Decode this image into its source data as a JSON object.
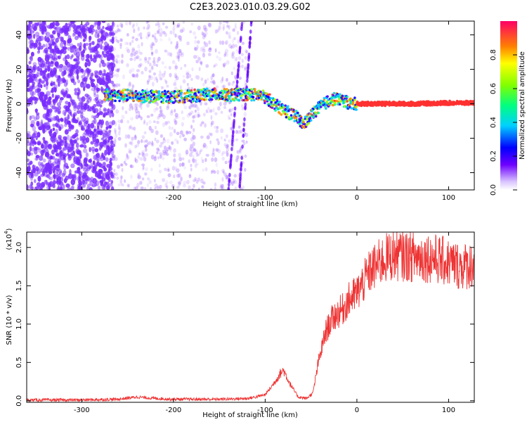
{
  "figure": {
    "title": "C2E3.2023.010.03.29.G02"
  },
  "chart_data": [
    {
      "type": "heatmap",
      "title": "C2E3.2023.010.03.29.G02",
      "xlabel": "Height of straight line (km)",
      "ylabel": "Frequency (Hz)",
      "xlim": [
        -360,
        128
      ],
      "ylim": [
        -50,
        48
      ],
      "xticks": [
        -300,
        -200,
        -100,
        0,
        100
      ],
      "xtick_labels": [
        "-300",
        "-200",
        "-100",
        "0",
        "100"
      ],
      "yticks": [
        -40,
        -20,
        0,
        20,
        40
      ],
      "ytick_labels": [
        "-40",
        "-20",
        "0",
        "20",
        "40"
      ],
      "colorbar": {
        "label": "Normalized spectral amplitude",
        "range": [
          0.0,
          1.0
        ],
        "ticks": [
          0.0,
          0.2,
          0.4,
          0.6,
          0.8
        ],
        "tick_labels": [
          "0.0",
          "0.2",
          "0.4",
          "0.6",
          "0.8"
        ],
        "colormap": "rainbow"
      },
      "ridge": {
        "description_points_x": [
          -275,
          -260,
          -240,
          -220,
          -200,
          -180,
          -160,
          -140,
          -120,
          -105,
          -95,
          -85,
          -75,
          -65,
          -58,
          -52,
          -45,
          -38,
          -30,
          -22,
          -15,
          -8,
          0,
          20,
          60,
          100,
          128
        ],
        "description_points_y": [
          5,
          5,
          4.5,
          4,
          4,
          4.5,
          5.5,
          5,
          5.5,
          5,
          2,
          -2,
          -5,
          -8,
          -12,
          -8,
          -4,
          -1,
          2,
          3,
          2,
          0,
          0,
          0,
          0,
          0.5,
          0.5
        ]
      }
    },
    {
      "type": "line",
      "xlabel": "Height of straight line (km)",
      "ylabel": "SNR (10 * v/v)",
      "y_exponent_label": "(x10",
      "y_exponent_power": "4",
      "xlim": [
        -360,
        128
      ],
      "ylim": [
        -0.02,
        2.2
      ],
      "xticks": [
        -300,
        -200,
        -100,
        0,
        100
      ],
      "xtick_labels": [
        "-300",
        "-200",
        "-100",
        "0",
        "100"
      ],
      "yticks": [
        0.0,
        0.5,
        1.0,
        1.5,
        2.0
      ],
      "ytick_labels": [
        "0.0",
        "0.5",
        "1.0",
        "1.5",
        "2.0"
      ],
      "color": "#ee3333",
      "envelope_x": [
        -360,
        -300,
        -260,
        -240,
        -220,
        -200,
        -150,
        -120,
        -110,
        -100,
        -92,
        -84,
        -80,
        -72,
        -64,
        -55,
        -48,
        -42,
        -38,
        -34,
        -30,
        -25,
        -20,
        -15,
        -10,
        -5,
        0,
        5,
        10,
        15,
        20,
        30,
        40,
        60,
        80,
        100,
        115,
        128
      ],
      "envelope_y": [
        0.01,
        0.01,
        0.02,
        0.05,
        0.03,
        0.02,
        0.02,
        0.03,
        0.05,
        0.08,
        0.2,
        0.35,
        0.4,
        0.2,
        0.05,
        0.03,
        0.1,
        0.5,
        0.7,
        0.9,
        1.0,
        1.1,
        1.15,
        1.2,
        1.3,
        1.35,
        1.4,
        1.5,
        1.6,
        1.7,
        1.75,
        1.85,
        1.9,
        1.88,
        1.87,
        1.8,
        1.75,
        1.78
      ]
    }
  ],
  "style": {
    "line_color": "#ee3333",
    "ridge_high": "#ff3030",
    "scatter_color": "#7a2cff"
  }
}
